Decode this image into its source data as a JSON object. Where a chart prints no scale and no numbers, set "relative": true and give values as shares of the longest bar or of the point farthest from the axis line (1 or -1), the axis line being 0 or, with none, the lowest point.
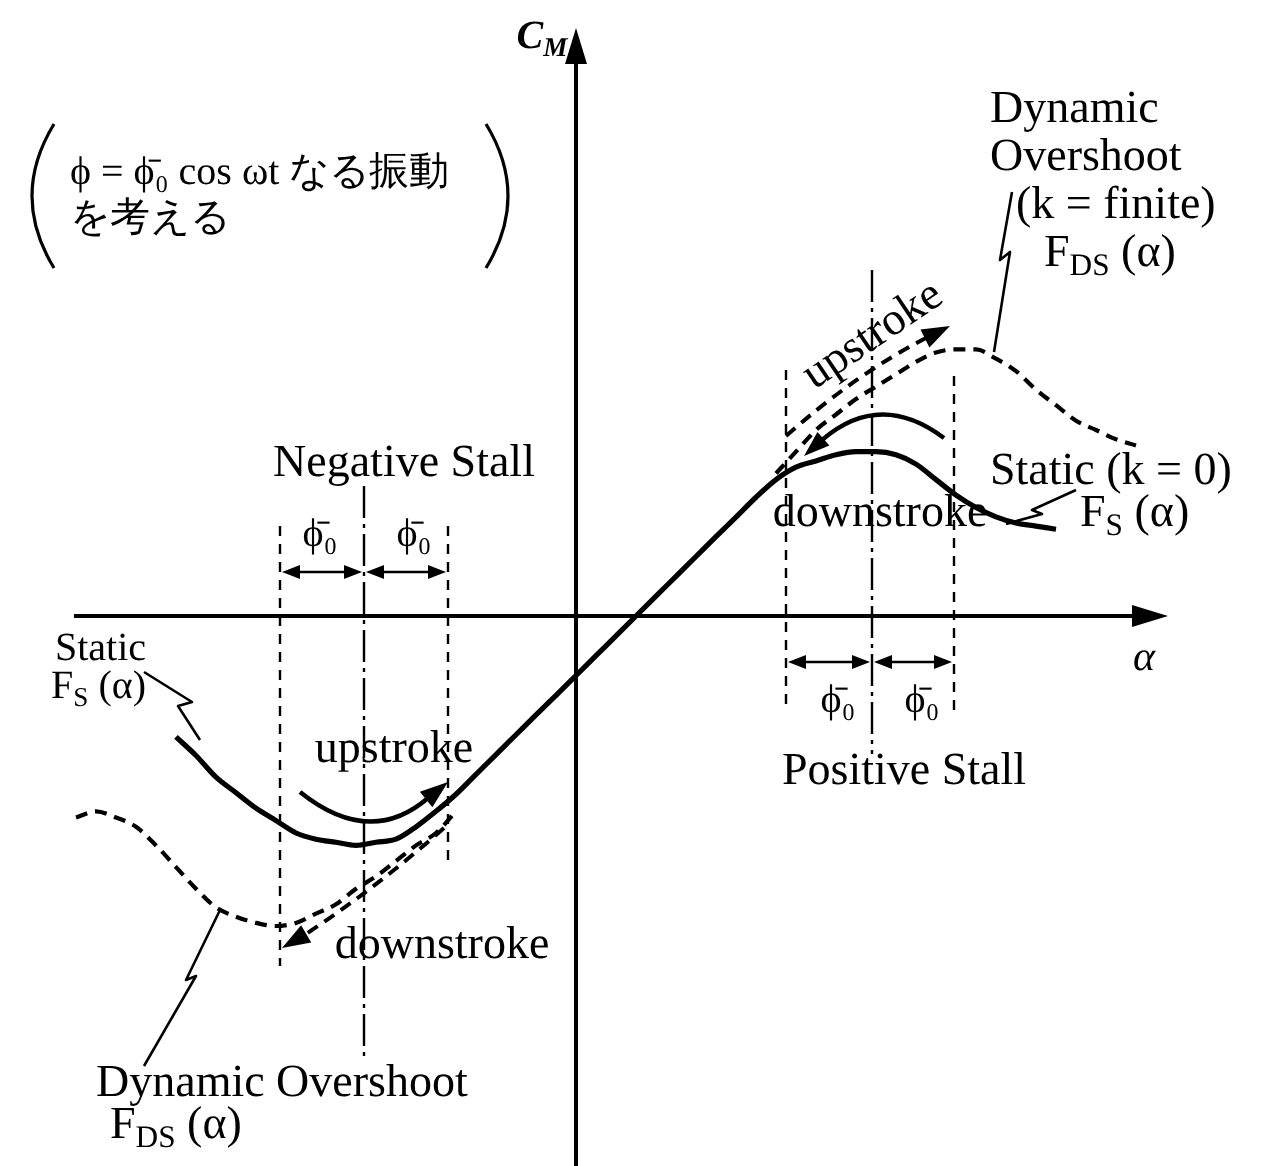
{
  "chart_data": {
    "type": "line",
    "relative": true,
    "tick_labels": false,
    "xlabel": "α",
    "categories": [
      null,
      null,
      null,
      null,
      null,
      null,
      null,
      null,
      null,
      null,
      null,
      null,
      null,
      null,
      null,
      null,
      null,
      null,
      null,
      null,
      null,
      null,
      null,
      null,
      null,
      null,
      null,
      null,
      null,
      null,
      null,
      null,
      null,
      null,
      null,
      null,
      null,
      null,
      null,
      null,
      null,
      null,
      null,
      null,
      null,
      null,
      null,
      null,
      null,
      null,
      null,
      null,
      null,
      null,
      null
    ],
    "series": [
      {
        "color": "#000000",
        "line_style": "solid",
        "values": [
          null,
          null,
          null,
          null,
          null,
          -0.39,
          -0.45,
          -0.52,
          -0.57,
          -0.62,
          -0.66,
          -0.7,
          -0.72,
          -0.73,
          -0.74,
          -0.73,
          -0.72,
          -0.68,
          -0.63,
          -0.575,
          -0.511,
          -0.447,
          -0.383,
          -0.319,
          -0.256,
          -0.192,
          -0.128,
          -0.064,
          0,
          0.064,
          0.128,
          0.192,
          0.256,
          0.319,
          0.383,
          0.44,
          0.48,
          0.5,
          0.52,
          0.53,
          0.53,
          0.52,
          0.49,
          0.44,
          0.39,
          0.35,
          0.32,
          0.3,
          0.29,
          0.28,
          null,
          null,
          null,
          null,
          null
        ]
      },
      {
        "color": "#000000",
        "line_style": "dashed",
        "values": [
          -0.65,
          -0.63,
          -0.65,
          -0.68,
          -0.74,
          -0.81,
          -0.88,
          -0.94,
          -0.97,
          -0.99,
          -1.0,
          -0.99,
          -0.96,
          -0.93,
          -0.88,
          -0.84,
          -0.79,
          -0.74,
          -0.7,
          -0.63,
          null,
          null,
          null,
          null,
          null,
          null,
          null,
          null,
          null,
          null,
          null,
          null,
          null,
          null,
          null,
          0.46,
          0.53,
          0.6,
          0.65,
          0.7,
          0.74,
          0.78,
          0.82,
          0.85,
          0.86,
          0.86,
          0.83,
          0.79,
          0.73,
          0.68,
          0.63,
          0.6,
          0.57,
          0.55,
          null
        ]
      }
    ],
    "annotations": [
      "ϕ = ϕ̄₀ cos ωt なる振動を考える",
      "Negative Stall",
      "ϕ̄₀",
      "ϕ̄₀",
      "ϕ̄₀",
      "ϕ̄₀",
      "Positive Stall",
      "Static\nF$_{S}$ (α)",
      "upstroke",
      "downstroke",
      "Dynamic Overshoot\nF$_{DS}$ (α)",
      "upstroke",
      "downstroke",
      "Static (k = 0)\nF$_{S}$ (α)",
      "Dynamic\nOvershoot\n(k = finite)\nF$_{DS}$ (α)",
      "C$_{M}$"
    ]
  }
}
